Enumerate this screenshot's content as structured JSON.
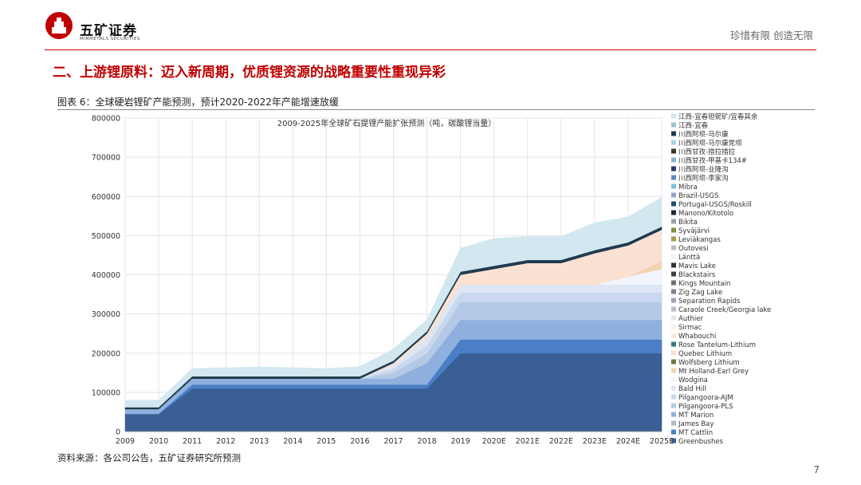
{
  "header": {
    "company_cn": "五矿证券",
    "company_en": "MINMETALS SECURITIES",
    "tagline": "珍惜有限 创造无限"
  },
  "slide_title": "二、上游锂原料：迈入新周期，优质锂资源的战略重要性重现异彩",
  "figure_caption": "图表 6：全球硬岩锂矿产能预测，预计2020-2022年产能增速放缓",
  "source": "资料来源：各公司公告，五矿证券研究所预测",
  "page_number": "7",
  "chart_data": {
    "type": "area",
    "title": "2009-2025年全球矿石提锂产能扩张预测（吨，碳酸锂当量）",
    "x": [
      "2009",
      "2010",
      "2011",
      "2012",
      "2013",
      "2014",
      "2015",
      "2016",
      "2017",
      "2018",
      "2019",
      "2020E",
      "2021E",
      "2022E",
      "2023E",
      "2024E",
      "2025E"
    ],
    "y_ticks": [
      "0",
      "100000",
      "200000",
      "300000",
      "400000",
      "500000",
      "600000",
      "700000",
      "800000"
    ],
    "ylim": [
      0,
      800000
    ],
    "legend_position": "right",
    "stacked": true,
    "series": [
      {
        "name": "Greenbushes",
        "color": "#3a5f94",
        "values": [
          45000,
          45000,
          110000,
          110000,
          110000,
          110000,
          110000,
          110000,
          110000,
          110000,
          200000,
          200000,
          200000,
          200000,
          200000,
          200000,
          200000
        ]
      },
      {
        "name": "MT Cattlin",
        "color": "#4a7fc8",
        "values": [
          0,
          0,
          10000,
          10000,
          10000,
          10000,
          10000,
          10000,
          10000,
          10000,
          35000,
          35000,
          35000,
          35000,
          35000,
          35000,
          35000
        ]
      },
      {
        "name": "James Bay",
        "color": "#b0b8c8",
        "values": [
          0,
          0,
          0,
          0,
          0,
          0,
          0,
          0,
          0,
          0,
          0,
          0,
          0,
          0,
          0,
          0,
          0
        ]
      },
      {
        "name": "MT Marion",
        "color": "#8fb0de",
        "values": [
          12000,
          12000,
          15000,
          15000,
          15000,
          15000,
          15000,
          15000,
          15000,
          55000,
          50000,
          50000,
          50000,
          50000,
          50000,
          50000,
          50000
        ]
      },
      {
        "name": "Pilgangoora-PLS",
        "color": "#b4c9e6",
        "values": [
          0,
          0,
          0,
          0,
          0,
          0,
          0,
          0,
          15000,
          25000,
          45000,
          45000,
          45000,
          45000,
          45000,
          45000,
          45000
        ]
      },
      {
        "name": "Pilgangoora-AJM",
        "color": "#c9d8ee",
        "values": [
          0,
          0,
          0,
          0,
          0,
          0,
          0,
          0,
          10000,
          20000,
          25000,
          25000,
          25000,
          25000,
          25000,
          25000,
          25000
        ]
      },
      {
        "name": "Bald Hill",
        "color": "#dde6f3",
        "values": [
          0,
          0,
          0,
          0,
          0,
          0,
          0,
          0,
          10000,
          20000,
          20000,
          20000,
          20000,
          20000,
          20000,
          20000,
          20000
        ]
      },
      {
        "name": "Wodgina",
        "color": "#f1f5fb",
        "values": [
          0,
          0,
          0,
          0,
          0,
          0,
          0,
          0,
          0,
          0,
          0,
          0,
          0,
          0,
          0,
          20000,
          40000
        ]
      },
      {
        "name": "Mt Holland-Earl Grey",
        "color": "#f2d4b4",
        "values": [
          0,
          0,
          0,
          0,
          0,
          0,
          0,
          0,
          0,
          0,
          0,
          0,
          0,
          0,
          0,
          0,
          20000
        ]
      },
      {
        "name": "Wolfsberg Lithium",
        "color": "#6b7a3c",
        "values": [
          0,
          0,
          0,
          0,
          0,
          0,
          0,
          0,
          0,
          0,
          0,
          0,
          0,
          0,
          0,
          0,
          0
        ]
      },
      {
        "name": "Quebec Lithium",
        "color": "#fbe1d2",
        "values": [
          0,
          0,
          0,
          0,
          0,
          0,
          0,
          0,
          5000,
          10000,
          25000,
          40000,
          55000,
          55000,
          80000,
          80000,
          80000
        ]
      },
      {
        "name": "Rose Tantelum-Lithium",
        "color": "#3c7a88",
        "values": [
          0,
          0,
          0,
          0,
          0,
          0,
          0,
          0,
          0,
          0,
          0,
          0,
          0,
          0,
          0,
          0,
          0
        ]
      },
      {
        "name": "Whabouchi",
        "color": "#fde9de",
        "values": [
          0,
          0,
          0,
          0,
          0,
          0,
          0,
          0,
          0,
          0,
          0,
          0,
          0,
          0,
          0,
          0,
          0
        ]
      },
      {
        "name": "Sirmac",
        "color": "#fcefe6",
        "values": [
          0,
          0,
          0,
          0,
          0,
          0,
          0,
          0,
          0,
          0,
          0,
          0,
          0,
          0,
          0,
          0,
          0
        ]
      },
      {
        "name": "Authier",
        "color": "#e3e7ec",
        "values": [
          0,
          0,
          0,
          0,
          0,
          0,
          0,
          0,
          0,
          0,
          0,
          0,
          0,
          0,
          0,
          0,
          0
        ]
      },
      {
        "name": "Caraole Creek/Georgia lake",
        "color": "#b7bfca",
        "values": [
          0,
          0,
          0,
          0,
          0,
          0,
          0,
          0,
          0,
          0,
          0,
          0,
          0,
          0,
          0,
          0,
          0
        ]
      },
      {
        "name": "Separation Rapids",
        "color": "#9ba4b0",
        "values": [
          0,
          0,
          0,
          0,
          0,
          0,
          0,
          0,
          0,
          0,
          0,
          0,
          0,
          0,
          0,
          0,
          0
        ]
      },
      {
        "name": "Zig Zag Lake",
        "color": "#7c8590",
        "values": [
          0,
          0,
          0,
          0,
          0,
          0,
          0,
          0,
          0,
          0,
          0,
          0,
          0,
          0,
          0,
          0,
          0
        ]
      },
      {
        "name": "Kings Mountain",
        "color": "#6d6f73",
        "values": [
          0,
          0,
          0,
          0,
          0,
          0,
          0,
          0,
          0,
          0,
          0,
          0,
          0,
          0,
          0,
          0,
          0
        ]
      },
      {
        "name": "Blackstairs",
        "color": "#3d4148",
        "values": [
          0,
          0,
          0,
          0,
          0,
          0,
          0,
          0,
          0,
          0,
          0,
          0,
          0,
          0,
          0,
          0,
          0
        ]
      },
      {
        "name": "Mavis Lake",
        "color": "#2e3238",
        "values": [
          0,
          0,
          0,
          0,
          0,
          0,
          0,
          0,
          0,
          0,
          0,
          0,
          0,
          0,
          0,
          0,
          0
        ]
      },
      {
        "name": "Länttä",
        "color": "#f3f3f3",
        "values": [
          0,
          0,
          0,
          0,
          0,
          0,
          0,
          0,
          0,
          0,
          0,
          0,
          0,
          0,
          0,
          0,
          0
        ]
      },
      {
        "name": "Outovesi",
        "color": "#bcbcbc",
        "values": [
          0,
          0,
          0,
          0,
          0,
          0,
          0,
          0,
          0,
          0,
          0,
          0,
          0,
          0,
          0,
          0,
          0
        ]
      },
      {
        "name": "Leviäkangas",
        "color": "#a89c4e",
        "values": [
          0,
          0,
          0,
          0,
          0,
          0,
          0,
          0,
          0,
          0,
          0,
          0,
          0,
          0,
          0,
          0,
          0
        ]
      },
      {
        "name": "Syväjärvi",
        "color": "#8c8c3c",
        "values": [
          0,
          0,
          0,
          0,
          0,
          0,
          0,
          0,
          0,
          0,
          0,
          0,
          0,
          0,
          0,
          0,
          0
        ]
      },
      {
        "name": "Bikita",
        "color": "#9aa5b1",
        "values": [
          0,
          0,
          0,
          0,
          0,
          0,
          0,
          0,
          0,
          0,
          0,
          0,
          0,
          0,
          0,
          0,
          0
        ]
      },
      {
        "name": "Manono/Kitotolo",
        "color": "#1f2a36",
        "values": [
          0,
          0,
          0,
          0,
          0,
          0,
          0,
          0,
          0,
          0,
          0,
          0,
          0,
          0,
          0,
          0,
          0
        ]
      },
      {
        "name": "Portugal-USGS/Roskill",
        "color": "#1f4e79",
        "values": [
          0,
          0,
          0,
          0,
          0,
          0,
          0,
          0,
          0,
          0,
          0,
          0,
          0,
          0,
          0,
          0,
          0
        ]
      },
      {
        "name": "Brazil-USGS",
        "color": "#8fa8c8",
        "values": [
          0,
          0,
          0,
          0,
          0,
          0,
          0,
          0,
          0,
          0,
          0,
          0,
          0,
          0,
          0,
          0,
          0
        ]
      },
      {
        "name": "Mibra",
        "color": "#7fc4de",
        "values": [
          0,
          0,
          0,
          0,
          0,
          0,
          0,
          0,
          0,
          0,
          0,
          0,
          0,
          0,
          0,
          0,
          0
        ]
      },
      {
        "name": "川西阿坝-李家沟",
        "color": "#5e8bc4",
        "values": [
          0,
          0,
          0,
          0,
          0,
          0,
          0,
          0,
          0,
          0,
          0,
          0,
          0,
          0,
          0,
          0,
          0
        ]
      },
      {
        "name": "川西阿坝-业隆沟",
        "color": "#2b3a66",
        "values": [
          0,
          0,
          0,
          0,
          0,
          0,
          0,
          0,
          0,
          0,
          0,
          0,
          0,
          0,
          0,
          0,
          0
        ]
      },
      {
        "name": "川西甘孜-甲基卡134#",
        "color": "#8cb4d8",
        "values": [
          0,
          0,
          0,
          0,
          0,
          0,
          0,
          0,
          0,
          0,
          0,
          0,
          0,
          0,
          0,
          0,
          0
        ]
      },
      {
        "name": "川西甘孜-措拉措拉",
        "color": "#3a3a28",
        "values": [
          0,
          0,
          0,
          0,
          0,
          0,
          0,
          0,
          0,
          0,
          0,
          0,
          0,
          0,
          0,
          0,
          0
        ]
      },
      {
        "name": "川西阿坝-马尔康党坝",
        "color": "#a8d4e6",
        "values": [
          0,
          0,
          0,
          0,
          0,
          0,
          0,
          0,
          0,
          0,
          0,
          0,
          0,
          0,
          0,
          0,
          0
        ]
      },
      {
        "name": "川西阿坝-马尔康",
        "color": "#1f3a50",
        "values": [
          5000,
          5000,
          6000,
          6000,
          6000,
          6000,
          6000,
          6000,
          6000,
          6000,
          8000,
          8000,
          8000,
          8000,
          8000,
          8000,
          8000
        ]
      },
      {
        "name": "江西-宜春",
        "color": "#9ec0d6",
        "values": [
          0,
          0,
          0,
          0,
          0,
          0,
          0,
          0,
          0,
          0,
          0,
          0,
          0,
          0,
          0,
          0,
          0
        ]
      },
      {
        "name": "江西-宜春钽铌矿/宜春其余",
        "color": "#d2e7ef",
        "values": [
          18000,
          18000,
          20000,
          22000,
          24000,
          22000,
          20000,
          25000,
          30000,
          30000,
          60000,
          70000,
          60000,
          60000,
          70000,
          65000,
          75000
        ]
      }
    ]
  }
}
